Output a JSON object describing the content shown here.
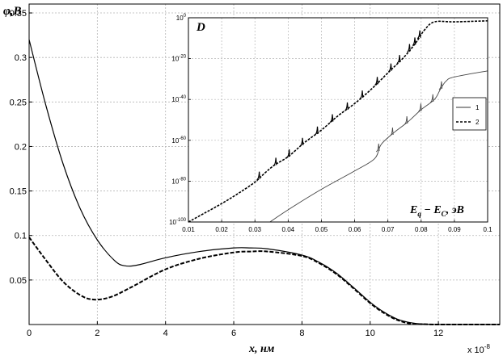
{
  "chart_data": [
    {
      "type": "line",
      "ylabel": "φ,В",
      "xlabel": "x, нм",
      "x_multiplier": "x 10",
      "x_multiplier_exp": "-8",
      "xlim": [
        0,
        13.8
      ],
      "ylim": [
        0,
        0.36
      ],
      "xticks": [
        0,
        2,
        4,
        6,
        8,
        10,
        12
      ],
      "yticks": [
        0.05,
        0.1,
        0.15,
        0.2,
        0.25,
        0.3,
        0.35
      ],
      "grid": true,
      "series": [
        {
          "style": "solid",
          "x": [
            0,
            0.5,
            1,
            1.5,
            2,
            2.5,
            2.8,
            3.2,
            4,
            5,
            6,
            6.5,
            7,
            8,
            8.5,
            9,
            9.5,
            10,
            10.4,
            10.8,
            11.2,
            11.6,
            12,
            13,
            13.8
          ],
          "y": [
            0.32,
            0.245,
            0.18,
            0.13,
            0.095,
            0.072,
            0.066,
            0.067,
            0.075,
            0.082,
            0.086,
            0.086,
            0.085,
            0.078,
            0.07,
            0.058,
            0.042,
            0.025,
            0.014,
            0.006,
            0.002,
            0.0005,
            0,
            0,
            0
          ]
        },
        {
          "style": "dashed",
          "x": [
            0,
            0.5,
            1,
            1.5,
            1.9,
            2.4,
            3,
            4,
            5,
            6,
            6.5,
            7,
            8,
            8.5,
            9,
            9.5,
            10,
            10.4,
            10.8,
            11.2,
            11.6,
            12,
            13,
            13.8
          ],
          "y": [
            0.098,
            0.072,
            0.048,
            0.033,
            0.028,
            0.031,
            0.042,
            0.062,
            0.074,
            0.081,
            0.082,
            0.082,
            0.077,
            0.069,
            0.057,
            0.041,
            0.024,
            0.013,
            0.005,
            0.001,
            0.0003,
            0,
            0,
            0
          ]
        }
      ]
    },
    {
      "type": "line",
      "inset": true,
      "ylabel": "D",
      "xlabel_main": "E",
      "xlabel_sub1": "q",
      "xlabel_mid": " − E",
      "xlabel_sub2": "C",
      "xlabel_unit": ", эВ",
      "xlim": [
        0.01,
        0.1
      ],
      "yscale": "log",
      "ylim_exp": [
        -100,
        0
      ],
      "xticks": [
        "0.01",
        "0.02",
        "0.03",
        "0.04",
        "0.05",
        "0.06",
        "0.07",
        "0.08",
        "0.09",
        "0.1"
      ],
      "ytick_base": "10",
      "ytick_exps": [
        "0",
        "-20",
        "-40",
        "-60",
        "-80",
        "-100"
      ],
      "legend": {
        "position": "right",
        "entries": [
          "1",
          "2"
        ]
      },
      "grid": true,
      "series": [
        {
          "name": "1",
          "style": "solid",
          "x_log10y": [
            [
              0.0345,
              -100
            ],
            [
              0.04,
              -94
            ],
            [
              0.05,
              -84
            ],
            [
              0.06,
              -75
            ],
            [
              0.066,
              -69
            ],
            [
              0.068,
              -62
            ],
            [
              0.072,
              -56
            ],
            [
              0.076,
              -51
            ],
            [
              0.08,
              -45
            ],
            [
              0.084,
              -40
            ],
            [
              0.0858,
              -35
            ],
            [
              0.0875,
              -31
            ],
            [
              0.09,
              -29
            ],
            [
              0.1,
              -26
            ]
          ],
          "resonance_x": [
            0.0672,
            0.0714,
            0.0757,
            0.0799,
            0.0835,
            0.0861
          ]
        },
        {
          "name": "2",
          "style": "dashed",
          "x_log10y": [
            [
              0.01,
              -100
            ],
            [
              0.015,
              -95.5
            ],
            [
              0.02,
              -91
            ],
            [
              0.025,
              -86
            ],
            [
              0.03,
              -80.5
            ],
            [
              0.033,
              -76
            ],
            [
              0.036,
              -72
            ],
            [
              0.04,
              -68
            ],
            [
              0.045,
              -61
            ],
            [
              0.05,
              -55
            ],
            [
              0.055,
              -48
            ],
            [
              0.06,
              -42
            ],
            [
              0.065,
              -35
            ],
            [
              0.07,
              -27
            ],
            [
              0.075,
              -19
            ],
            [
              0.0785,
              -12
            ],
            [
              0.081,
              -6
            ],
            [
              0.084,
              -2
            ],
            [
              0.09,
              -2
            ],
            [
              0.1,
              -1.5
            ]
          ],
          "resonance_x": [
            0.0313,
            0.0363,
            0.0403,
            0.0443,
            0.0488,
            0.0533,
            0.0578,
            0.0623,
            0.0668,
            0.0709,
            0.0735,
            0.0765,
            0.0781,
            0.0796
          ]
        }
      ]
    }
  ]
}
